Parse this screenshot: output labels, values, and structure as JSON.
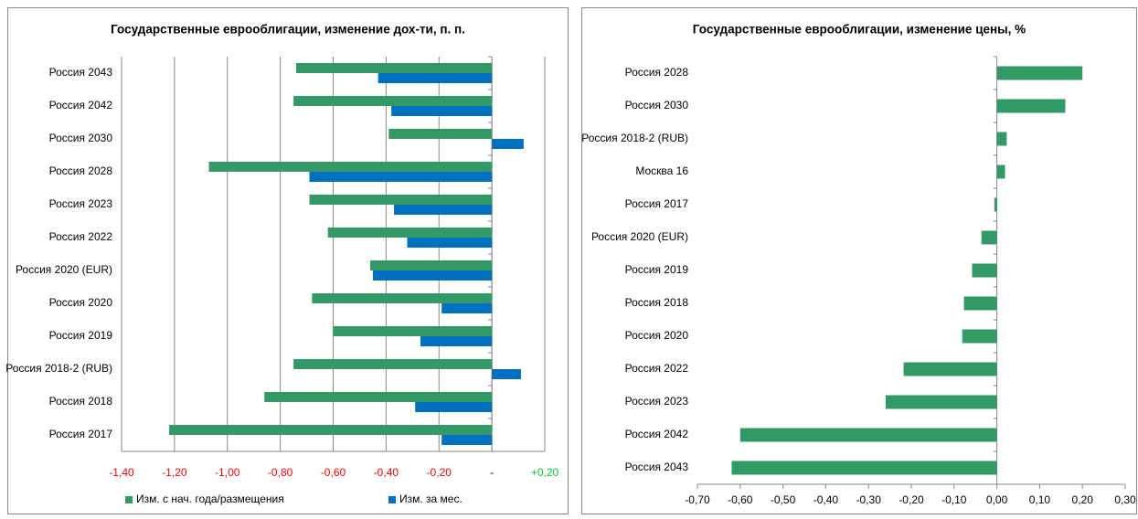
{
  "chart_data": [
    {
      "type": "hbar",
      "title": "Государственные еврооблигации, изменение дох-ти, п. п.",
      "categories": [
        "Россия 2043",
        "Россия 2042",
        "Россия 2030",
        "Россия 2028",
        "Россия 2023",
        "Россия 2022",
        "Россия 2020 (EUR)",
        "Россия 2020",
        "Россия 2019",
        "Россия 2018-2 (RUB)",
        "Россия 2018",
        "Россия 2017"
      ],
      "series": [
        {
          "name": "Изм. с нач. года/размещения",
          "color": "#339966",
          "values": [
            -0.74,
            -0.75,
            -0.39,
            -1.07,
            -0.69,
            -0.62,
            -0.46,
            -0.68,
            -0.6,
            -0.75,
            -0.86,
            -1.22
          ]
        },
        {
          "name": "Изм. за мес.",
          "color": "#0070c0",
          "values": [
            -0.43,
            -0.38,
            0.12,
            -0.69,
            -0.37,
            -0.32,
            -0.45,
            -0.19,
            -0.27,
            0.11,
            -0.29,
            -0.19
          ]
        }
      ],
      "xlim": [
        -1.4,
        0.2
      ],
      "xticks": [
        {
          "value": -1.4,
          "label": "-1,40"
        },
        {
          "value": -1.2,
          "label": "-1,20"
        },
        {
          "value": -1.0,
          "label": "-1,00"
        },
        {
          "value": -0.8,
          "label": "-0,80"
        },
        {
          "value": -0.6,
          "label": "-0,60"
        },
        {
          "value": -0.4,
          "label": "-0,40"
        },
        {
          "value": -0.2,
          "label": "-0,20"
        },
        {
          "value": 0,
          "label": "-"
        },
        {
          "value": 0.2,
          "label": "+0,20"
        }
      ],
      "xtick_colors": [
        "#ff0000",
        "#ff0000",
        "#ff0000",
        "#ff0000",
        "#ff0000",
        "#ff0000",
        "#ff0000",
        "#000000",
        "#00cc33"
      ],
      "grid": true,
      "legend": "bottom"
    },
    {
      "type": "hbar",
      "title": "Государственные еврооблигации, изменение цены, %",
      "categories": [
        "Россия 2028",
        "Россия 2030",
        "Россия 2018-2 (RUB)",
        "Москва 16",
        "Россия 2017",
        "Россия 2020 (EUR)",
        "Россия 2019",
        "Россия 2018",
        "Россия 2020",
        "Россия 2022",
        "Россия 2023",
        "Россия 2042",
        "Россия 2043"
      ],
      "series": [
        {
          "color": "#339966",
          "values": [
            0.2,
            0.16,
            0.023,
            0.019,
            -0.006,
            -0.036,
            -0.058,
            -0.077,
            -0.081,
            -0.218,
            -0.26,
            -0.6,
            -0.62
          ]
        }
      ],
      "xlim": [
        -0.7,
        0.3
      ],
      "xticks": [
        {
          "value": -0.7,
          "label": "-0,70"
        },
        {
          "value": -0.6,
          "label": "-0,60"
        },
        {
          "value": -0.5,
          "label": "-0,50"
        },
        {
          "value": -0.4,
          "label": "-0,40"
        },
        {
          "value": -0.3,
          "label": "-0,30"
        },
        {
          "value": -0.2,
          "label": "-0,20"
        },
        {
          "value": -0.1,
          "label": "-0,10"
        },
        {
          "value": 0,
          "label": "0,00"
        },
        {
          "value": 0.1,
          "label": "0,10"
        },
        {
          "value": 0.2,
          "label": "0,20"
        },
        {
          "value": 0.3,
          "label": "0,30"
        }
      ],
      "grid": false
    }
  ]
}
